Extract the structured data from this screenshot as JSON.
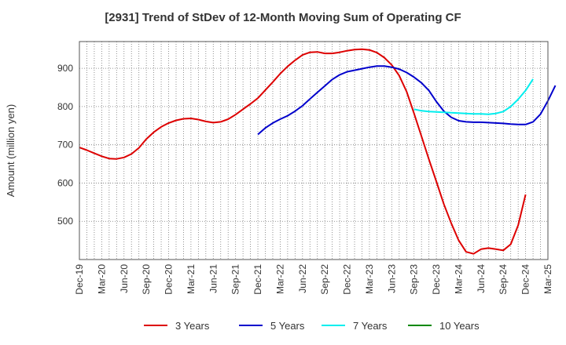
{
  "chart_data": {
    "type": "line",
    "title": "[2931]  Trend of StDev of 12-Month Moving Sum of Operating CF",
    "ylabel": "Amount (million yen)",
    "xlabel": "",
    "ylim": [
      400,
      970
    ],
    "yticks": [
      500,
      600,
      700,
      800,
      900
    ],
    "x_tick_labels": [
      "Dec-19",
      "Mar-20",
      "Jun-20",
      "Sep-20",
      "Dec-20",
      "Mar-21",
      "Jun-21",
      "Sep-21",
      "Dec-21",
      "Mar-22",
      "Jun-22",
      "Sep-22",
      "Dec-22",
      "Mar-23",
      "Jun-23",
      "Sep-23",
      "Dec-23",
      "Mar-24",
      "Jun-24",
      "Sep-24",
      "Dec-24",
      "Mar-25"
    ],
    "grid": true,
    "legend_position": "bottom",
    "series": [
      {
        "name": "3 Years",
        "color": "#dd0000",
        "start_month": 0,
        "values": [
          693,
          686,
          678,
          670,
          664,
          663,
          667,
          676,
          692,
          715,
          733,
          747,
          757,
          764,
          768,
          769,
          766,
          761,
          758,
          760,
          767,
          779,
          793,
          807,
          822,
          843,
          864,
          886,
          905,
          921,
          935,
          942,
          943,
          939,
          939,
          942,
          946,
          949,
          950,
          948,
          941,
          928,
          909,
          881,
          839,
          782,
          722,
          662,
          604,
          545,
          495,
          450,
          420,
          415,
          427,
          430,
          427,
          424,
          440,
          490,
          570
        ]
      },
      {
        "name": "5 Years",
        "color": "#0000cc",
        "start_month": 24,
        "values": [
          727,
          744,
          757,
          767,
          776,
          788,
          802,
          820,
          837,
          854,
          871,
          883,
          891,
          895,
          899,
          903,
          906,
          906,
          903,
          898,
          889,
          877,
          862,
          842,
          813,
          788,
          772,
          763,
          760,
          759,
          759,
          758,
          757,
          756,
          754,
          753,
          753,
          760,
          780,
          815,
          855
        ]
      },
      {
        "name": "7 Years",
        "color": "#00eeee",
        "start_month": 45,
        "values": [
          793,
          789,
          787,
          786,
          785,
          784,
          783,
          782,
          781,
          781,
          780,
          782,
          787,
          800,
          819,
          842,
          872
        ]
      },
      {
        "name": "10 Years",
        "color": "#008800",
        "start_month": 0,
        "values": []
      }
    ]
  }
}
